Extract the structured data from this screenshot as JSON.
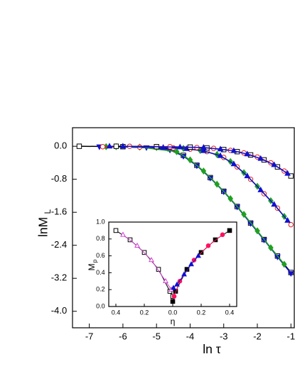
{
  "chart_data": [
    {
      "type": "line",
      "xlabel": "ln τ",
      "ylabel": "lnM",
      "ylabel_sub": "L",
      "xlim": [
        -7.5,
        -0.9
      ],
      "ylim": [
        -4.4,
        0.45
      ],
      "xticks": [
        -7,
        -6,
        -5,
        -4,
        -3,
        -2,
        -1
      ],
      "yticks": [
        {
          "value": 0,
          "label": "0.0"
        },
        -0.8,
        -1.6,
        -2.4,
        -3.2,
        {
          "value": -4,
          "label": "-4.0"
        }
      ],
      "series": [
        {
          "color": "#000000",
          "marker": "square",
          "filled": false,
          "x": [
            -7.3,
            -6.0,
            -4.6,
            -4.2,
            -3.8,
            -3.4,
            -3.0,
            -2.6,
            -2.2,
            -1.8,
            -1.4,
            -1.0
          ],
          "values": [
            0,
            -0.01,
            -0.06,
            -0.22,
            -0.46,
            -0.76,
            -1.09,
            -1.46,
            -1.86,
            -2.26,
            -2.66,
            -3.06
          ]
        },
        {
          "color": "#1010d0",
          "marker": "triangle-down",
          "filled": true,
          "x": [
            -6.7,
            -5.3,
            -4.6,
            -4.2,
            -3.8,
            -3.4,
            -3.0,
            -2.6,
            -2.2,
            -1.8,
            -1.4,
            -1.0
          ],
          "values": [
            -0.01,
            -0.03,
            -0.09,
            -0.24,
            -0.47,
            -0.77,
            -1.1,
            -1.47,
            -1.87,
            -2.27,
            -2.68,
            -3.08
          ]
        },
        {
          "color": "#20a020",
          "marker": "diamond",
          "filled": true,
          "x": [
            -6.5,
            -5.5,
            -4.4,
            -4.0,
            -3.6,
            -3.2,
            -2.8,
            -2.4,
            -2.0,
            -1.6,
            -1.2
          ],
          "values": [
            -0.01,
            -0.02,
            -0.13,
            -0.33,
            -0.6,
            -0.92,
            -1.27,
            -1.65,
            -2.05,
            -2.46,
            -2.86
          ]
        },
        {
          "color": "#e02020",
          "marker": "circle",
          "filled": false,
          "x": [
            -6.6,
            -5.5,
            -4.5,
            -4.0,
            -3.5,
            -3.0,
            -2.6,
            -2.2,
            -1.8,
            -1.4,
            -1.0
          ],
          "values": [
            -0.01,
            -0.02,
            -0.04,
            -0.07,
            -0.13,
            -0.27,
            -0.5,
            -0.8,
            -1.15,
            -1.5,
            -1.9
          ]
        },
        {
          "color": "#20a020",
          "marker": "diamond",
          "filled": true,
          "x": [
            -6.2,
            -5.0,
            -4.2,
            -3.7,
            -3.2,
            -2.8,
            -2.4,
            -2.0,
            -1.6,
            -1.2
          ],
          "values": [
            -0.01,
            -0.03,
            -0.05,
            -0.1,
            -0.2,
            -0.37,
            -0.64,
            -0.97,
            -1.32,
            -1.7
          ]
        },
        {
          "color": "#1010d0",
          "marker": "triangle-up",
          "filled": true,
          "x": [
            -6.4,
            -4.8,
            -4.1,
            -3.6,
            -3.1,
            -2.7,
            -2.3,
            -1.9,
            -1.5,
            -1.1
          ],
          "values": [
            0,
            -0.03,
            -0.06,
            -0.11,
            -0.23,
            -0.43,
            -0.72,
            -1.06,
            -1.41,
            -1.8
          ]
        },
        {
          "color": "#000000",
          "marker": "square",
          "filled": false,
          "x": [
            -6.2,
            -5.0,
            -4.0,
            -3.5,
            -3.0,
            -2.6,
            -2.2,
            -1.8,
            -1.4,
            -1.0
          ],
          "values": [
            0,
            -0.01,
            -0.02,
            -0.04,
            -0.08,
            -0.13,
            -0.21,
            -0.33,
            -0.5,
            -0.72
          ]
        },
        {
          "color": "#e02020",
          "marker": "circle",
          "filled": false,
          "x": [
            -5.8,
            -4.6,
            -3.8,
            -3.3,
            -2.8,
            -2.4,
            -2.0,
            -1.6,
            -1.2
          ],
          "values": [
            0,
            -0.01,
            -0.03,
            -0.05,
            -0.1,
            -0.16,
            -0.26,
            -0.4,
            -0.6
          ]
        },
        {
          "color": "#1010d0",
          "marker": "triangle-up",
          "filled": true,
          "x": [
            -6.0,
            -4.3,
            -3.6,
            -3.1,
            -2.7,
            -2.3,
            -1.9,
            -1.5,
            -1.1
          ],
          "values": [
            0,
            -0.02,
            -0.03,
            -0.07,
            -0.11,
            -0.19,
            -0.3,
            -0.45,
            -0.66
          ]
        }
      ]
    },
    {
      "type": "line",
      "xlabel": "η",
      "ylabel": "M",
      "ylabel_sub": "p",
      "xlim": [
        -0.45,
        0.45
      ],
      "ylim": [
        0,
        1
      ],
      "xticks": [
        {
          "value": -0.4,
          "label": "0.4"
        },
        {
          "value": -0.2,
          "label": "0.2"
        },
        {
          "value": 0,
          "label": "0.0"
        },
        0.2,
        0.4
      ],
      "yticks": [
        {
          "value": 0,
          "label": "0.0"
        },
        0.2,
        0.4,
        0.6,
        0.8,
        {
          "value": 1,
          "label": "1.0"
        }
      ],
      "series": [
        {
          "color": "#000000",
          "marker": "square",
          "filled": false,
          "x": [
            -0.4,
            -0.3,
            -0.2,
            -0.1,
            -0.02,
            0
          ],
          "values": [
            0.9,
            0.79,
            0.64,
            0.44,
            0.18,
            0.12
          ]
        },
        {
          "color": "#d040d0",
          "marker": "triangle-up",
          "filled": false,
          "x": [
            -0.35,
            -0.25,
            -0.15,
            -0.05,
            -0.01
          ],
          "values": [
            0.85,
            0.72,
            0.55,
            0.3,
            0.2
          ]
        },
        {
          "color": "#000000",
          "marker": "square",
          "filled": true,
          "x": [
            0,
            0.02,
            0.1,
            0.2,
            0.3,
            0.4
          ],
          "values": [
            0.06,
            0.18,
            0.44,
            0.64,
            0.79,
            0.9
          ]
        },
        {
          "color": "#ff1060",
          "marker": "circle",
          "filled": true,
          "x": [
            0.01,
            0.05,
            0.15,
            0.25,
            0.35
          ],
          "values": [
            0.12,
            0.3,
            0.55,
            0.72,
            0.85
          ]
        },
        {
          "color": "#1010d0",
          "marker": "triangle-up",
          "filled": true,
          "x": [
            0.005,
            0.03,
            0.08,
            0.13,
            0.18
          ],
          "values": [
            0.22,
            0.26,
            0.38,
            0.5,
            0.6
          ]
        }
      ]
    }
  ]
}
